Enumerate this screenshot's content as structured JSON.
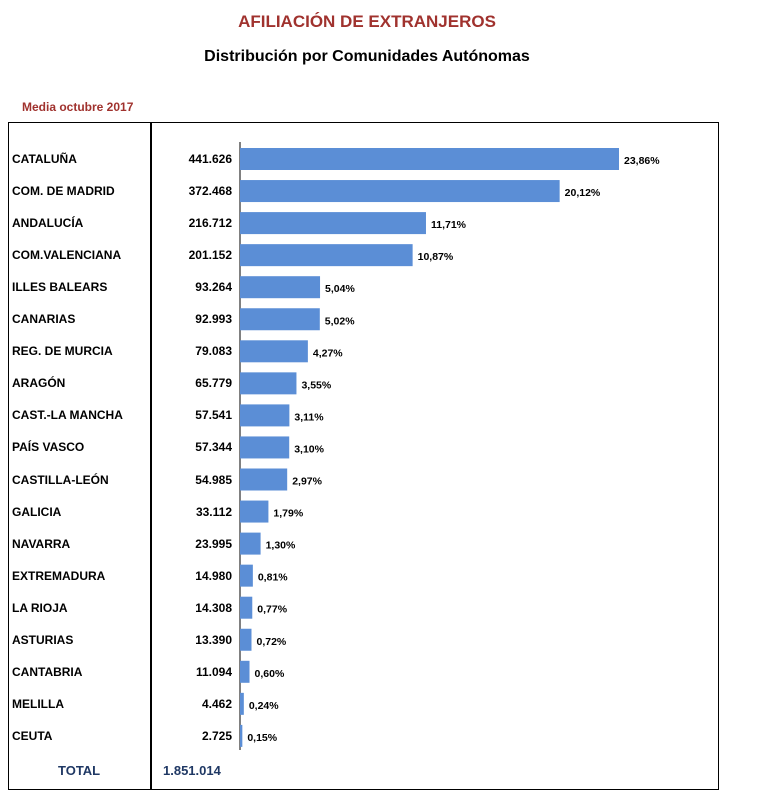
{
  "header": {
    "title": "AFILIACIÓN DE  EXTRANJEROS",
    "subtitle": "Distribución por Comunidades Autónomas",
    "period": "Media octubre 2017"
  },
  "totals": {
    "label": "TOTAL",
    "value": "1.851.014"
  },
  "colors": {
    "bar": "#5b8ed6",
    "title": "#a0322e",
    "total": "#1f3864"
  },
  "chart_data": {
    "type": "bar",
    "orientation": "horizontal",
    "title": "Distribución por Comunidades Autónomas",
    "xlabel": "",
    "ylabel": "",
    "categories": [
      "CATALUÑA",
      "COM. DE MADRID",
      "ANDALUCÍA",
      "COM.VALENCIANA",
      "ILLES BALEARS",
      "CANARIAS",
      "REG. DE MURCIA",
      "ARAGÓN",
      "CAST.-LA MANCHA",
      "PAÍS VASCO",
      "CASTILLA-LEÓN",
      "GALICIA",
      "NAVARRA",
      "EXTREMADURA",
      "LA RIOJA",
      "ASTURIAS",
      "CANTABRIA",
      "MELILLA",
      "CEUTA"
    ],
    "values": [
      441626,
      372468,
      216712,
      201152,
      93264,
      92993,
      79083,
      65779,
      57541,
      57344,
      54985,
      33112,
      23995,
      14980,
      14308,
      13390,
      11094,
      4462,
      2725
    ],
    "value_labels": [
      "441.626",
      "372.468",
      "216.712",
      "201.152",
      "93.264",
      "92.993",
      "79.083",
      "65.779",
      "57.541",
      "57.344",
      "54.985",
      "33.112",
      "23.995",
      "14.980",
      "14.308",
      "13.390",
      "11.094",
      "4.462",
      "2.725"
    ],
    "pct_values": [
      23.86,
      20.12,
      11.71,
      10.87,
      5.04,
      5.02,
      4.27,
      3.55,
      3.11,
      3.1,
      2.97,
      1.79,
      1.3,
      0.81,
      0.77,
      0.72,
      0.6,
      0.24,
      0.15
    ],
    "pct_labels": [
      "23,86%",
      "20,12%",
      "11,71%",
      "10,87%",
      "5,04%",
      "5,02%",
      "4,27%",
      "3,55%",
      "3,11%",
      "3,10%",
      "2,97%",
      "1,79%",
      "1,30%",
      "0,81%",
      "0,77%",
      "0,72%",
      "0,60%",
      "0,24%",
      "0,15%"
    ],
    "xlim": [
      0,
      450000
    ],
    "grid": false,
    "legend": "none"
  }
}
